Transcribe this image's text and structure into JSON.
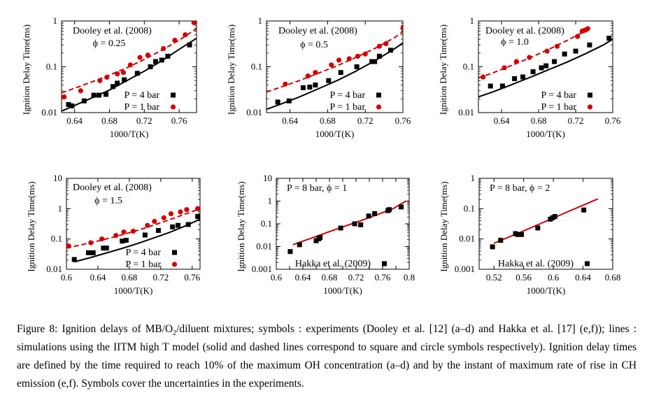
{
  "caption": {
    "prefix": "Figure 8:  Ignition delays of MB/O",
    "sub": "2",
    "suffix": "/diluent mixtures; symbols : experiments (Dooley et al. [12] (a–d) and Hakka et al. [17] (e,f)); lines : simulations using the IITM high T model (solid and dashed lines correspond to square and circle symbols respectively). Ignition delay times are defined by the time required to reach 10% of the maximum OH concentration (a–d) and by the instant of maximum rate of rise in CH emission (e,f). Symbols cover the uncertainties in the experiments."
  },
  "chart_data": [
    {
      "type": "scatter",
      "xlabel": "1000/T(K)",
      "ylabel": "Ignition Delay Time(ms)",
      "yscale": "log",
      "xlim": [
        0.625,
        0.78
      ],
      "ylim": [
        0.01,
        1
      ],
      "xticks": [
        0.64,
        0.68,
        0.72,
        0.76
      ],
      "xtick_labels": [
        "0.64",
        "0.68",
        "0.72",
        "0.76"
      ],
      "yticks": [
        0.01,
        0.1,
        1
      ],
      "ytick_labels": [
        "0.01",
        "0.1",
        "1"
      ],
      "annotations": [
        "Dooley et al. (2008)",
        "ϕ = 0.25"
      ],
      "series": [
        {
          "name": "P = 4 bar",
          "marker": "square",
          "color": "#000000",
          "x": [
            0.633,
            0.637,
            0.651,
            0.662,
            0.668,
            0.676,
            0.684,
            0.689,
            0.697,
            0.712,
            0.727,
            0.733,
            0.74,
            0.747,
            0.772
          ],
          "y": [
            0.015,
            0.014,
            0.018,
            0.024,
            0.024,
            0.025,
            0.037,
            0.044,
            0.052,
            0.072,
            0.1,
            0.13,
            0.14,
            0.17,
            0.3
          ],
          "line": {
            "style": "solid",
            "x": [
              0.625,
              0.64,
              0.66,
              0.68,
              0.7,
              0.72,
              0.74,
              0.76,
              0.78
            ],
            "y": [
              0.0108,
              0.0143,
              0.021,
              0.031,
              0.05,
              0.08,
              0.135,
              0.24,
              0.42
            ]
          }
        },
        {
          "name": "P = 1 bar",
          "marker": "circle",
          "color": "#d40000",
          "x": [
            0.628,
            0.647,
            0.669,
            0.677,
            0.689,
            0.696,
            0.704,
            0.715,
            0.724,
            0.742,
            0.755,
            0.767,
            0.777
          ],
          "y": [
            0.022,
            0.03,
            0.05,
            0.059,
            0.07,
            0.075,
            0.11,
            0.16,
            0.18,
            0.25,
            0.38,
            0.5,
            0.92
          ],
          "line": {
            "style": "dashed",
            "x": [
              0.625,
              0.64,
              0.66,
              0.68,
              0.7,
              0.72,
              0.74,
              0.76,
              0.78
            ],
            "y": [
              0.027,
              0.034,
              0.047,
              0.066,
              0.095,
              0.145,
              0.23,
              0.38,
              0.68
            ]
          }
        }
      ]
    },
    {
      "type": "scatter",
      "xlabel": "1000/T(K)",
      "ylabel": "Ignition Delay Time(ms)",
      "yscale": "log",
      "xlim": [
        0.615,
        0.76
      ],
      "ylim": [
        0.01,
        1
      ],
      "xticks": [
        0.64,
        0.68,
        0.72,
        0.76
      ],
      "xtick_labels": [
        "0.64",
        "0.68",
        "0.72",
        "0.76"
      ],
      "yticks": [
        0.01,
        0.1,
        1
      ],
      "ytick_labels": [
        "0.01",
        "0.1",
        "1"
      ],
      "annotations": [
        "Dooley et al. (2008)",
        "ϕ = 0.5"
      ],
      "series": [
        {
          "name": "P = 4 bar",
          "marker": "square",
          "color": "#000000",
          "x": [
            0.627,
            0.639,
            0.654,
            0.661,
            0.667,
            0.681,
            0.694,
            0.711,
            0.727,
            0.73,
            0.735,
            0.747
          ],
          "y": [
            0.017,
            0.018,
            0.035,
            0.036,
            0.04,
            0.05,
            0.075,
            0.1,
            0.13,
            0.13,
            0.17,
            0.23
          ],
          "line": {
            "style": "solid",
            "x": [
              0.615,
              0.63,
              0.65,
              0.67,
              0.69,
              0.71,
              0.73,
              0.75,
              0.76
            ],
            "y": [
              0.0118,
              0.0153,
              0.022,
              0.033,
              0.05,
              0.08,
              0.135,
              0.24,
              0.33
            ]
          }
        },
        {
          "name": "P = 1 bar",
          "marker": "circle",
          "color": "#d40000",
          "x": [
            0.635,
            0.659,
            0.667,
            0.684,
            0.692,
            0.703,
            0.712,
            0.72,
            0.735,
            0.742,
            0.76
          ],
          "y": [
            0.042,
            0.063,
            0.075,
            0.11,
            0.14,
            0.15,
            0.17,
            0.19,
            0.28,
            0.32,
            0.7
          ],
          "line": {
            "style": "dashed",
            "x": [
              0.615,
              0.63,
              0.65,
              0.67,
              0.69,
              0.71,
              0.73,
              0.75,
              0.76
            ],
            "y": [
              0.028,
              0.036,
              0.05,
              0.072,
              0.105,
              0.16,
              0.25,
              0.42,
              0.58
            ]
          }
        }
      ]
    },
    {
      "type": "scatter",
      "xlabel": "1000/T(K)",
      "ylabel": "Ignition Delay Time(ms)",
      "yscale": "log",
      "xlim": [
        0.615,
        0.76
      ],
      "ylim": [
        0.01,
        1
      ],
      "xticks": [
        0.64,
        0.68,
        0.72,
        0.76
      ],
      "xtick_labels": [
        "0.64",
        "0.68",
        "0.72",
        "0.76"
      ],
      "yticks": [
        0.01,
        0.1,
        1
      ],
      "ytick_labels": [
        "0.01",
        "0.1",
        "1"
      ],
      "annotations": [
        "Dooley et al. (2008)",
        "ϕ = 1.0"
      ],
      "series": [
        {
          "name": "P = 4 bar",
          "marker": "square",
          "color": "#000000",
          "x": [
            0.628,
            0.641,
            0.654,
            0.663,
            0.674,
            0.683,
            0.688,
            0.697,
            0.708,
            0.72,
            0.735,
            0.756
          ],
          "y": [
            0.038,
            0.038,
            0.055,
            0.06,
            0.078,
            0.095,
            0.105,
            0.13,
            0.19,
            0.22,
            0.3,
            0.42
          ],
          "line": {
            "style": "solid",
            "x": [
              0.615,
              0.63,
              0.65,
              0.67,
              0.69,
              0.71,
              0.73,
              0.75,
              0.76
            ],
            "y": [
              0.022,
              0.028,
              0.04,
              0.058,
              0.085,
              0.125,
              0.19,
              0.3,
              0.4
            ]
          }
        },
        {
          "name": "P = 1 bar",
          "marker": "circle",
          "color": "#d40000",
          "x": [
            0.62,
            0.643,
            0.656,
            0.67,
            0.689,
            0.7,
            0.722,
            0.727,
            0.729,
            0.731,
            0.733
          ],
          "y": [
            0.06,
            0.095,
            0.13,
            0.16,
            0.22,
            0.28,
            0.46,
            0.6,
            0.62,
            0.64,
            0.68
          ],
          "line": {
            "style": "dashed",
            "x": [
              0.615,
              0.63,
              0.65,
              0.67,
              0.69,
              0.71,
              0.73
            ],
            "y": [
              0.057,
              0.073,
              0.105,
              0.155,
              0.235,
              0.37,
              0.6
            ]
          }
        }
      ]
    },
    {
      "type": "scatter",
      "xlabel": "1000/T(K)",
      "ylabel": "Ignition Delay Time(ms)",
      "yscale": "log",
      "xlim": [
        0.6,
        0.77
      ],
      "ylim": [
        0.01,
        10
      ],
      "xticks": [
        0.6,
        0.64,
        0.68,
        0.72,
        0.76
      ],
      "xtick_labels": [
        "0.6",
        "0.64",
        "0.68",
        "0.72",
        "0.76"
      ],
      "yticks": [
        0.01,
        0.1,
        1,
        10
      ],
      "ytick_labels": [
        "0.01",
        "0.1",
        "1",
        "10"
      ],
      "annotations": [
        "Dooley et al. (2008)",
        "ϕ = 1.5"
      ],
      "series": [
        {
          "name": "P = 4 bar",
          "marker": "square",
          "color": "#000000",
          "x": [
            0.61,
            0.628,
            0.634,
            0.647,
            0.651,
            0.671,
            0.676,
            0.7,
            0.717,
            0.735,
            0.742,
            0.755,
            0.767
          ],
          "y": [
            0.021,
            0.035,
            0.035,
            0.05,
            0.05,
            0.085,
            0.09,
            0.135,
            0.19,
            0.25,
            0.28,
            0.3,
            0.55
          ],
          "line": {
            "style": "solid",
            "x": [
              0.61,
              0.63,
              0.65,
              0.67,
              0.69,
              0.71,
              0.73,
              0.75,
              0.77
            ],
            "y": [
              0.0175,
              0.024,
              0.034,
              0.048,
              0.07,
              0.105,
              0.16,
              0.26,
              0.45
            ]
          }
        },
        {
          "name": "P = 1 bar",
          "marker": "circle",
          "color": "#d40000",
          "x": [
            0.603,
            0.631,
            0.645,
            0.663,
            0.673,
            0.685,
            0.703,
            0.712,
            0.724,
            0.733,
            0.745,
            0.753,
            0.767
          ],
          "y": [
            0.058,
            0.075,
            0.1,
            0.13,
            0.17,
            0.18,
            0.28,
            0.38,
            0.5,
            0.68,
            0.78,
            0.93,
            1.0
          ],
          "line": {
            "style": "dashed",
            "x": [
              0.6,
              0.62,
              0.64,
              0.66,
              0.68,
              0.7,
              0.72,
              0.74,
              0.76,
              0.77
            ],
            "y": [
              0.05,
              0.065,
              0.085,
              0.115,
              0.16,
              0.23,
              0.34,
              0.52,
              0.8,
              1.0
            ]
          }
        }
      ]
    },
    {
      "type": "scatter",
      "xlabel": "1000/T(K)",
      "ylabel": "Ignition Delay Time(ms)",
      "yscale": "log",
      "xlim": [
        0.6,
        0.8
      ],
      "ylim": [
        0.001,
        10
      ],
      "xticks": [
        0.6,
        0.62,
        0.64,
        0.66,
        0.68,
        0.7,
        0.72,
        0.74,
        0.76,
        0.78,
        0.8
      ],
      "xtick_labels": [
        "0.6",
        "",
        "0.64",
        "",
        "0.68",
        "",
        "0.72",
        "",
        "0.76",
        "",
        "0.8"
      ],
      "yticks": [
        0.001,
        0.01,
        0.1,
        1,
        10
      ],
      "ytick_labels": [
        "0.001",
        "0.01",
        "0.1",
        "1",
        "10"
      ],
      "annotations": [
        "P = 8 bar, ϕ = 1"
      ],
      "series": [
        {
          "name": "Hakka et al. (2009)",
          "marker": "square",
          "color": "#000000",
          "x": [
            0.621,
            0.635,
            0.66,
            0.664,
            0.666,
            0.697,
            0.718,
            0.727,
            0.739,
            0.748,
            0.768,
            0.77,
            0.788
          ],
          "y": [
            0.006,
            0.012,
            0.018,
            0.022,
            0.025,
            0.065,
            0.1,
            0.09,
            0.22,
            0.28,
            0.38,
            0.42,
            0.55
          ],
          "line": {
            "style": "solid",
            "color": "#d40000",
            "x": [
              0.625,
              0.65,
              0.675,
              0.7,
              0.725,
              0.75,
              0.775,
              0.795
            ],
            "y": [
              0.012,
              0.022,
              0.04,
              0.073,
              0.13,
              0.24,
              0.45,
              1.0
            ]
          }
        }
      ]
    },
    {
      "type": "scatter",
      "xlabel": "1000/T(K)",
      "ylabel": "Ignition Delay Time(ms)",
      "yscale": "log",
      "xlim": [
        0.5,
        0.68
      ],
      "ylim": [
        0.001,
        1
      ],
      "xticks": [
        0.52,
        0.56,
        0.6,
        0.64,
        0.68
      ],
      "xtick_labels": [
        "0.52",
        "0.56",
        "0.6",
        "0.64",
        "0.68"
      ],
      "yticks": [
        0.001,
        0.01,
        0.1,
        1
      ],
      "ytick_labels": [
        "0.001",
        "0.01",
        "0.1",
        "1"
      ],
      "annotations": [
        "P = 8 bar, ϕ = 2"
      ],
      "series": [
        {
          "name": "Hakka et al. (2009)",
          "marker": "square",
          "color": "#000000",
          "x": [
            0.518,
            0.529,
            0.549,
            0.552,
            0.557,
            0.579,
            0.596,
            0.599,
            0.602,
            0.641
          ],
          "y": [
            0.0055,
            0.009,
            0.015,
            0.014,
            0.014,
            0.023,
            0.045,
            0.05,
            0.055,
            0.09
          ],
          "line": {
            "style": "solid",
            "color": "#d40000",
            "x": [
              0.52,
              0.54,
              0.56,
              0.58,
              0.6,
              0.62,
              0.64,
              0.66
            ],
            "y": [
              0.0072,
              0.0115,
              0.0185,
              0.03,
              0.049,
              0.08,
              0.13,
              0.21
            ]
          }
        }
      ]
    }
  ]
}
